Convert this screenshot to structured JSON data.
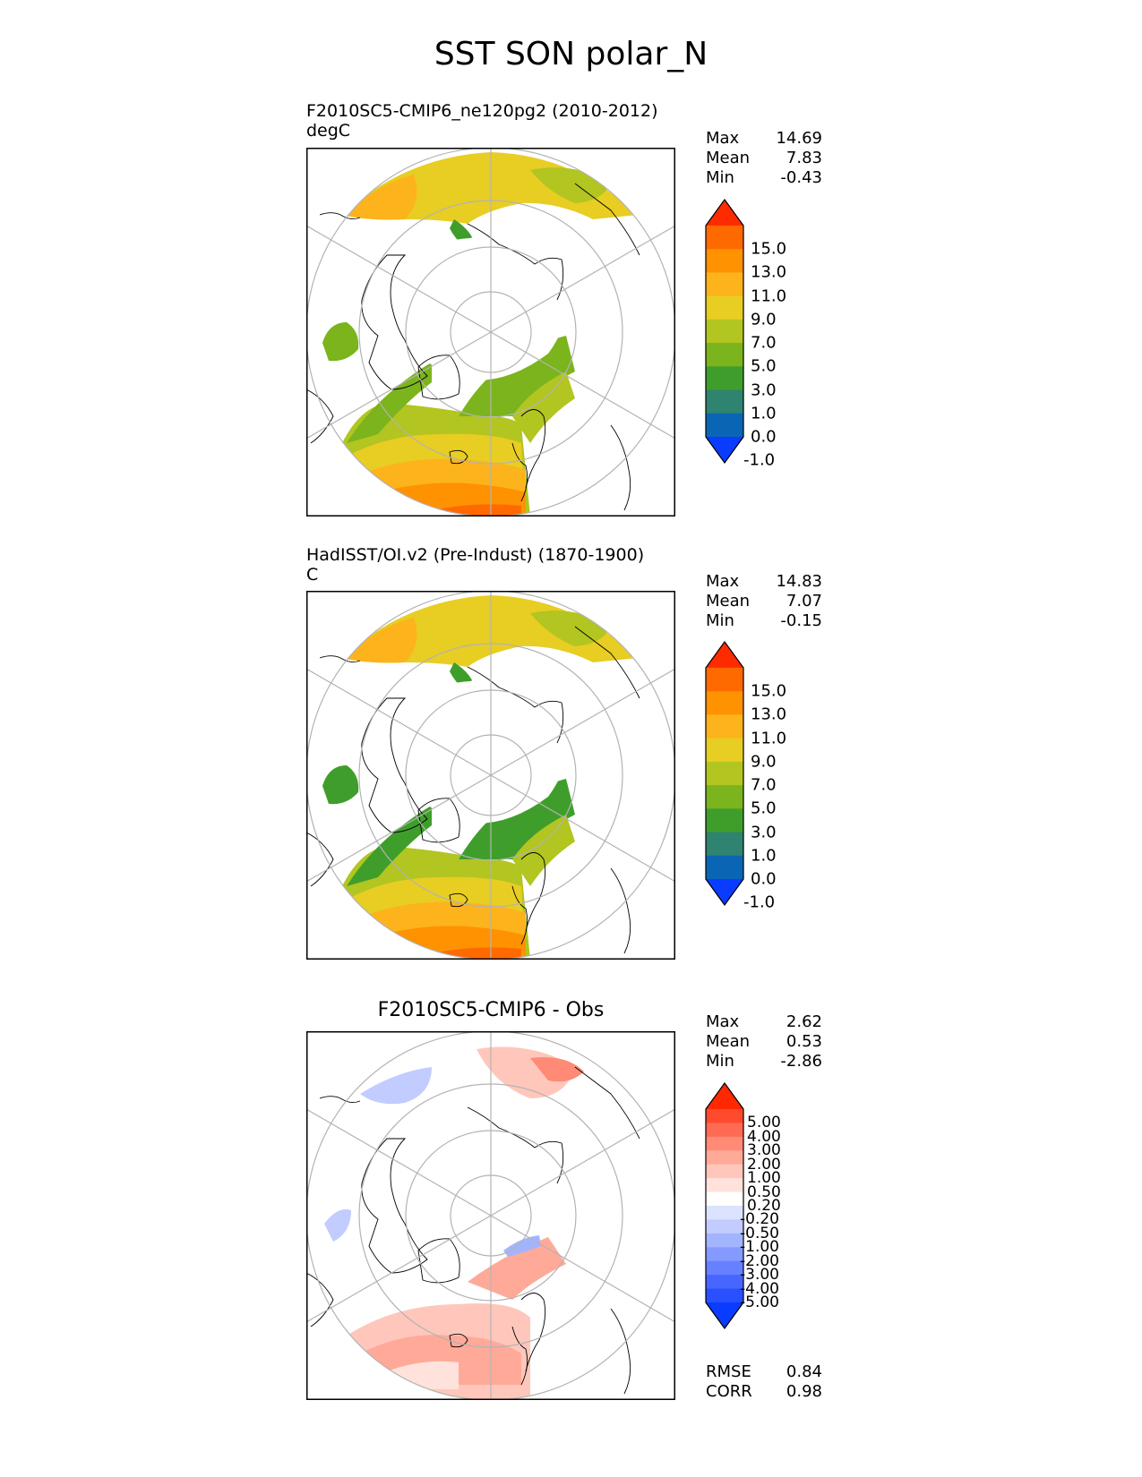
{
  "title": "SST SON polar_N",
  "panels": [
    {
      "title_line1": "F2010SC5-CMIP6_ne120pg2 (2010-2012)",
      "title_line2": "degC",
      "stats": [
        {
          "label": "Max",
          "value": "14.69"
        },
        {
          "label": "Mean",
          "value": "7.83"
        },
        {
          "label": "Min",
          "value": "-0.43"
        }
      ]
    },
    {
      "title_line1": "HadISST/OI.v2 (Pre-Indust) (1870-1900)",
      "title_line2": "C",
      "stats": [
        {
          "label": "Max",
          "value": "14.83"
        },
        {
          "label": "Mean",
          "value": "7.07"
        },
        {
          "label": "Min",
          "value": "-0.15"
        }
      ]
    },
    {
      "title_line1": "F2010SC5-CMIP6 - Obs",
      "stats": [
        {
          "label": "Max",
          "value": "2.62"
        },
        {
          "label": "Mean",
          "value": "0.53"
        },
        {
          "label": "Min",
          "value": "-2.86"
        }
      ],
      "metrics": [
        {
          "label": "RMSE",
          "value": "0.84"
        },
        {
          "label": "CORR",
          "value": "0.98"
        }
      ]
    }
  ],
  "colorbar_abs": {
    "labels": [
      "15.0",
      "13.0",
      "11.0",
      "9.0",
      "7.0",
      "5.0",
      "3.0",
      "1.0",
      "0.0",
      "-1.0"
    ],
    "colors": [
      "#ff2b00",
      "#ff6a00",
      "#ff9200",
      "#fdb31c",
      "#e8cd23",
      "#b2c520",
      "#7bb41c",
      "#3f9e2b",
      "#2e8470",
      "#0a66b4",
      "#0a3cff"
    ]
  },
  "colorbar_diff": {
    "labels": [
      "5.00",
      "4.00",
      "3.00",
      "2.00",
      "1.00",
      "0.50",
      "0.20",
      "-0.20",
      "-0.50",
      "-1.00",
      "-2.00",
      "-3.00",
      "-4.00",
      "-5.00"
    ],
    "colors": [
      "#ff2800",
      "#ff4a2e",
      "#ff6a52",
      "#ff8a75",
      "#ffaa99",
      "#ffc7bb",
      "#ffe2dc",
      "#ffffff",
      "#dce3ff",
      "#c2ccff",
      "#a3b4ff",
      "#859aff",
      "#6680ff",
      "#4766ff",
      "#2850ff",
      "#0a3cff"
    ]
  }
}
